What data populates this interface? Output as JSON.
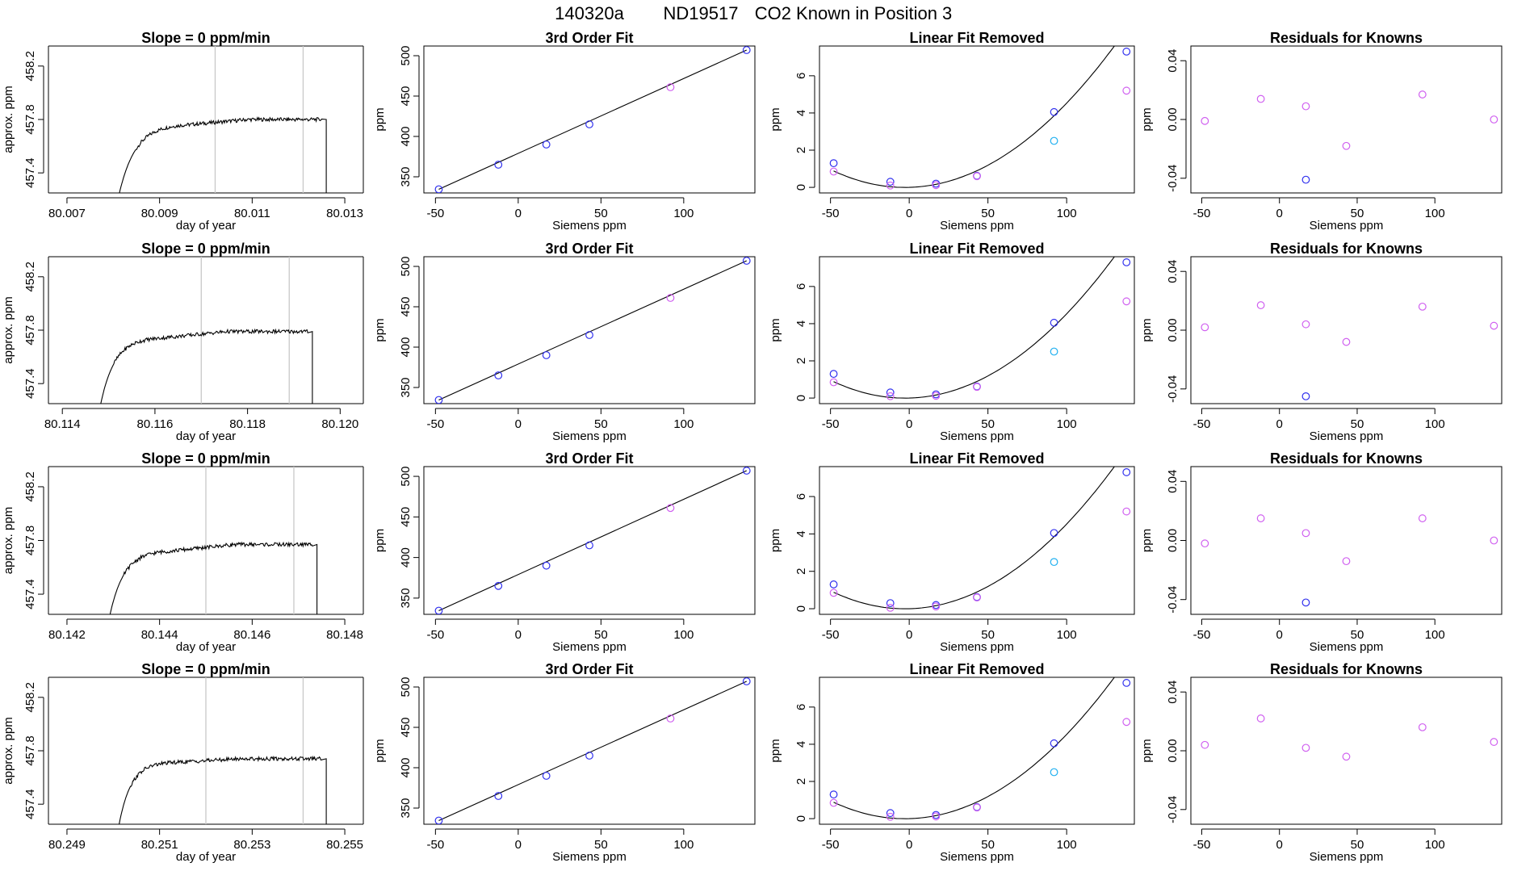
{
  "figure": {
    "title_left": "140320a",
    "title_mid": "ND19517",
    "title_right": "CO2 Known in Position  3"
  },
  "colors": {
    "blue": "#3030ee",
    "magenta": "#d060f0",
    "cyan": "#20b0f0",
    "gray": "#c8c8c8",
    "red": "#f09090"
  },
  "chart_data": [
    {
      "type": "line",
      "row": 1,
      "col": 1,
      "title": "Slope =  0  ppm/min",
      "xlabel": "day of year",
      "ylabel": "approx. ppm",
      "xlim": [
        80.0066,
        80.0134
      ],
      "ylim": [
        457.25,
        458.35
      ],
      "xticks": [
        80.007,
        80.009,
        80.011,
        80.013
      ],
      "xtick_labels": [
        "80.007",
        "80.009",
        "80.011",
        "80.013"
      ],
      "yticks": [
        457.4,
        457.8,
        458.2
      ],
      "ytick_labels": [
        "457.4",
        "457.8",
        "458.2"
      ],
      "vlines": [
        80.0102,
        80.0121
      ],
      "trace": {
        "start": 80.0081,
        "rise_end": 80.0096,
        "plateau_end": 80.0125,
        "end": 80.0126,
        "base": 457.2,
        "shoulder": 457.6,
        "plateau_start": 457.76,
        "plateau_level": 457.8
      }
    },
    {
      "type": "scatter",
      "row": 1,
      "col": 2,
      "title": "3rd Order Fit",
      "xlabel": "Siemens ppm",
      "ylabel": "ppm",
      "xlim": [
        -57,
        143
      ],
      "ylim": [
        330,
        512
      ],
      "xticks": [
        -50,
        0,
        50,
        100
      ],
      "yticks": [
        350,
        400,
        450,
        500
      ],
      "fit_line": [
        [
          -48,
          334.5
        ],
        [
          138,
          507
        ]
      ],
      "points": [
        {
          "x": -48,
          "y": 334.5,
          "c": "blue"
        },
        {
          "x": -12,
          "y": 365,
          "c": "blue"
        },
        {
          "x": 17,
          "y": 390,
          "c": "blue"
        },
        {
          "x": 43,
          "y": 415,
          "c": "blue"
        },
        {
          "x": 92,
          "y": 461,
          "c": "magenta"
        },
        {
          "x": 138,
          "y": 507,
          "c": "blue"
        }
      ]
    },
    {
      "type": "scatter",
      "row": 1,
      "col": 3,
      "title": "Linear Fit Removed",
      "xlabel": "Siemens ppm",
      "ylabel": "ppm",
      "xlim": [
        -57,
        143
      ],
      "ylim": [
        -0.3,
        7.6
      ],
      "xticks": [
        -50,
        0,
        50,
        100
      ],
      "yticks": [
        0,
        2,
        4,
        6
      ],
      "curve": {
        "a": 0.00043,
        "b": 0.0023
      },
      "points": [
        {
          "x": -48,
          "y": 1.3,
          "c": "blue"
        },
        {
          "x": -48,
          "y": 0.85,
          "c": "magenta"
        },
        {
          "x": -12,
          "y": 0.3,
          "c": "blue"
        },
        {
          "x": -12,
          "y": 0.1,
          "c": "magenta"
        },
        {
          "x": 17,
          "y": 0.2,
          "c": "blue"
        },
        {
          "x": 17,
          "y": 0.12,
          "c": "magenta"
        },
        {
          "x": 43,
          "y": 0.62,
          "c": "blue"
        },
        {
          "x": 43,
          "y": 0.6,
          "c": "magenta"
        },
        {
          "x": 92,
          "y": 4.05,
          "c": "blue"
        },
        {
          "x": 92,
          "y": 2.5,
          "c": "cyan"
        },
        {
          "x": 138,
          "y": 7.3,
          "c": "blue"
        },
        {
          "x": 138,
          "y": 5.2,
          "c": "magenta"
        }
      ]
    },
    {
      "type": "scatter",
      "row": 1,
      "col": 4,
      "title": "Residuals for Knowns",
      "xlabel": "Siemens ppm",
      "ylabel": "ppm",
      "xlim": [
        -57,
        143
      ],
      "ylim": [
        -0.05,
        0.05
      ],
      "xticks": [
        -50,
        0,
        50,
        100
      ],
      "yticks": [
        -0.04,
        0.0,
        0.04
      ],
      "ytick_labels": [
        "-0.04",
        "0.00",
        "0.04"
      ],
      "points": [
        {
          "x": -48,
          "y": -0.001,
          "c": "magenta"
        },
        {
          "x": -12,
          "y": 0.014,
          "c": "magenta"
        },
        {
          "x": 17,
          "y": -0.041,
          "c": "blue"
        },
        {
          "x": 17,
          "y": 0.009,
          "c": "magenta"
        },
        {
          "x": 43,
          "y": -0.018,
          "c": "magenta"
        },
        {
          "x": 92,
          "y": 0.017,
          "c": "magenta"
        },
        {
          "x": 138,
          "y": 0.0,
          "c": "magenta"
        }
      ]
    },
    {
      "type": "line",
      "row": 2,
      "col": 1,
      "title": "Slope =  0  ppm/min",
      "xlabel": "day of year",
      "ylabel": "approx. ppm",
      "xlim": [
        80.1137,
        80.1205
      ],
      "ylim": [
        457.25,
        458.35
      ],
      "xticks": [
        80.114,
        80.116,
        80.118,
        80.12
      ],
      "xtick_labels": [
        "80.114",
        "80.116",
        "80.118",
        "80.120"
      ],
      "yticks": [
        457.4,
        457.8,
        458.2
      ],
      "ytick_labels": [
        "457.4",
        "457.8",
        "458.2"
      ],
      "vlines": [
        80.117,
        80.1189
      ],
      "trace": {
        "start": 80.1148,
        "rise_end": 80.1161,
        "plateau_end": 80.1193,
        "end": 80.1194,
        "base": 457.2,
        "shoulder": 457.58,
        "plateau_start": 457.74,
        "plateau_level": 457.79
      }
    },
    {
      "type": "scatter",
      "row": 2,
      "col": 2,
      "title": "3rd Order Fit",
      "xlabel": "Siemens ppm",
      "ylabel": "ppm",
      "xlim": [
        -57,
        143
      ],
      "ylim": [
        330,
        512
      ],
      "xticks": [
        -50,
        0,
        50,
        100
      ],
      "yticks": [
        350,
        400,
        450,
        500
      ],
      "fit_line": [
        [
          -48,
          334.5
        ],
        [
          138,
          507
        ]
      ],
      "points": [
        {
          "x": -48,
          "y": 334.5,
          "c": "blue"
        },
        {
          "x": -12,
          "y": 365,
          "c": "blue"
        },
        {
          "x": 17,
          "y": 390,
          "c": "blue"
        },
        {
          "x": 43,
          "y": 415,
          "c": "blue"
        },
        {
          "x": 92,
          "y": 461,
          "c": "magenta"
        },
        {
          "x": 138,
          "y": 507,
          "c": "blue"
        }
      ]
    },
    {
      "type": "scatter",
      "row": 2,
      "col": 3,
      "title": "Linear Fit Removed",
      "xlabel": "Siemens ppm",
      "ylabel": "ppm",
      "xlim": [
        -57,
        143
      ],
      "ylim": [
        -0.3,
        7.6
      ],
      "xticks": [
        -50,
        0,
        50,
        100
      ],
      "yticks": [
        0,
        2,
        4,
        6
      ],
      "curve": {
        "a": 0.00043,
        "b": 0.0023
      },
      "points": [
        {
          "x": -48,
          "y": 1.3,
          "c": "blue"
        },
        {
          "x": -48,
          "y": 0.85,
          "c": "magenta"
        },
        {
          "x": -12,
          "y": 0.3,
          "c": "blue"
        },
        {
          "x": -12,
          "y": 0.1,
          "c": "magenta"
        },
        {
          "x": 17,
          "y": 0.2,
          "c": "blue"
        },
        {
          "x": 17,
          "y": 0.12,
          "c": "magenta"
        },
        {
          "x": 43,
          "y": 0.62,
          "c": "blue"
        },
        {
          "x": 43,
          "y": 0.6,
          "c": "magenta"
        },
        {
          "x": 92,
          "y": 4.05,
          "c": "blue"
        },
        {
          "x": 92,
          "y": 2.5,
          "c": "cyan"
        },
        {
          "x": 138,
          "y": 7.3,
          "c": "blue"
        },
        {
          "x": 138,
          "y": 5.2,
          "c": "magenta"
        }
      ]
    },
    {
      "type": "scatter",
      "row": 2,
      "col": 4,
      "title": "Residuals for Knowns",
      "xlabel": "Siemens ppm",
      "ylabel": "ppm",
      "xlim": [
        -57,
        143
      ],
      "ylim": [
        -0.05,
        0.05
      ],
      "xticks": [
        -50,
        0,
        50,
        100
      ],
      "yticks": [
        -0.04,
        0.0,
        0.04
      ],
      "ytick_labels": [
        "-0.04",
        "0.00",
        "0.04"
      ],
      "points": [
        {
          "x": -48,
          "y": 0.002,
          "c": "magenta"
        },
        {
          "x": -12,
          "y": 0.017,
          "c": "magenta"
        },
        {
          "x": 17,
          "y": -0.045,
          "c": "blue"
        },
        {
          "x": 17,
          "y": 0.004,
          "c": "magenta"
        },
        {
          "x": 43,
          "y": -0.008,
          "c": "magenta"
        },
        {
          "x": 92,
          "y": 0.016,
          "c": "magenta"
        },
        {
          "x": 138,
          "y": 0.003,
          "c": "magenta"
        }
      ]
    },
    {
      "type": "line",
      "row": 3,
      "col": 1,
      "title": "Slope =  0  ppm/min",
      "xlabel": "day of year",
      "ylabel": "approx. ppm",
      "xlim": [
        80.1416,
        80.1484
      ],
      "ylim": [
        457.25,
        458.35
      ],
      "xticks": [
        80.142,
        80.144,
        80.146,
        80.148
      ],
      "xtick_labels": [
        "80.142",
        "80.144",
        "80.146",
        "80.148"
      ],
      "yticks": [
        457.4,
        457.8,
        458.2
      ],
      "ytick_labels": [
        "457.4",
        "457.8",
        "458.2"
      ],
      "vlines": [
        80.145,
        80.1469
      ],
      "trace": {
        "start": 80.1429,
        "rise_end": 80.1442,
        "plateau_end": 80.1473,
        "end": 80.1474,
        "base": 457.2,
        "shoulder": 457.56,
        "plateau_start": 457.72,
        "plateau_level": 457.77
      }
    },
    {
      "type": "scatter",
      "row": 3,
      "col": 2,
      "title": "3rd Order Fit",
      "xlabel": "Siemens ppm",
      "ylabel": "ppm",
      "xlim": [
        -57,
        143
      ],
      "ylim": [
        330,
        512
      ],
      "xticks": [
        -50,
        0,
        50,
        100
      ],
      "yticks": [
        350,
        400,
        450,
        500
      ],
      "fit_line": [
        [
          -48,
          334.5
        ],
        [
          138,
          507
        ]
      ],
      "points": [
        {
          "x": -48,
          "y": 334.5,
          "c": "blue"
        },
        {
          "x": -12,
          "y": 365,
          "c": "blue"
        },
        {
          "x": 17,
          "y": 390,
          "c": "blue"
        },
        {
          "x": 43,
          "y": 415,
          "c": "blue"
        },
        {
          "x": 92,
          "y": 461,
          "c": "magenta"
        },
        {
          "x": 138,
          "y": 507,
          "c": "blue"
        }
      ]
    },
    {
      "type": "scatter",
      "row": 3,
      "col": 3,
      "title": "Linear Fit Removed",
      "xlabel": "Siemens ppm",
      "ylabel": "ppm",
      "xlim": [
        -57,
        143
      ],
      "ylim": [
        -0.3,
        7.6
      ],
      "xticks": [
        -50,
        0,
        50,
        100
      ],
      "yticks": [
        0,
        2,
        4,
        6
      ],
      "curve": {
        "a": 0.00043,
        "b": 0.0023
      },
      "points": [
        {
          "x": -48,
          "y": 1.3,
          "c": "blue"
        },
        {
          "x": -48,
          "y": 0.85,
          "c": "magenta"
        },
        {
          "x": -12,
          "y": 0.3,
          "c": "blue"
        },
        {
          "x": -12,
          "y": 0.05,
          "c": "magenta"
        },
        {
          "x": 17,
          "y": 0.2,
          "c": "blue"
        },
        {
          "x": 17,
          "y": 0.12,
          "c": "magenta"
        },
        {
          "x": 43,
          "y": 0.62,
          "c": "blue"
        },
        {
          "x": 43,
          "y": 0.6,
          "c": "magenta"
        },
        {
          "x": 92,
          "y": 4.05,
          "c": "blue"
        },
        {
          "x": 92,
          "y": 2.5,
          "c": "cyan"
        },
        {
          "x": 138,
          "y": 7.3,
          "c": "blue"
        },
        {
          "x": 138,
          "y": 5.2,
          "c": "magenta"
        }
      ]
    },
    {
      "type": "scatter",
      "row": 3,
      "col": 4,
      "title": "Residuals for Knowns",
      "xlabel": "Siemens ppm",
      "ylabel": "ppm",
      "xlim": [
        -57,
        143
      ],
      "ylim": [
        -0.05,
        0.05
      ],
      "xticks": [
        -50,
        0,
        50,
        100
      ],
      "yticks": [
        -0.04,
        0.0,
        0.04
      ],
      "ytick_labels": [
        "-0.04",
        "0.00",
        "0.04"
      ],
      "points": [
        {
          "x": -48,
          "y": -0.002,
          "c": "magenta"
        },
        {
          "x": -12,
          "y": 0.015,
          "c": "magenta"
        },
        {
          "x": 17,
          "y": -0.042,
          "c": "blue"
        },
        {
          "x": 17,
          "y": 0.005,
          "c": "magenta"
        },
        {
          "x": 43,
          "y": -0.014,
          "c": "magenta"
        },
        {
          "x": 92,
          "y": 0.015,
          "c": "magenta"
        },
        {
          "x": 138,
          "y": 0.0,
          "c": "magenta"
        }
      ]
    },
    {
      "type": "line",
      "row": 4,
      "col": 1,
      "title": "Slope =  0  ppm/min",
      "xlabel": "day of year",
      "ylabel": "approx. ppm",
      "xlim": [
        80.2486,
        80.2554
      ],
      "ylim": [
        457.25,
        458.35
      ],
      "xticks": [
        80.249,
        80.251,
        80.253,
        80.255
      ],
      "xtick_labels": [
        "80.249",
        "80.251",
        "80.253",
        "80.255"
      ],
      "yticks": [
        457.4,
        457.8,
        458.2
      ],
      "ytick_labels": [
        "457.4",
        "457.8",
        "458.2"
      ],
      "vlines": [
        80.252,
        80.2541
      ],
      "trace": {
        "start": 80.2501,
        "rise_end": 80.2512,
        "plateau_end": 80.2545,
        "end": 80.2546,
        "base": 457.2,
        "shoulder": 457.56,
        "plateau_start": 457.71,
        "plateau_level": 457.74
      }
    },
    {
      "type": "scatter",
      "row": 4,
      "col": 2,
      "title": "3rd Order Fit",
      "xlabel": "Siemens ppm",
      "ylabel": "ppm",
      "xlim": [
        -57,
        143
      ],
      "ylim": [
        330,
        512
      ],
      "xticks": [
        -50,
        0,
        50,
        100
      ],
      "yticks": [
        350,
        400,
        450,
        500
      ],
      "fit_line": [
        [
          -48,
          334.5
        ],
        [
          138,
          507
        ]
      ],
      "points": [
        {
          "x": -48,
          "y": 334.5,
          "c": "blue"
        },
        {
          "x": -12,
          "y": 365,
          "c": "blue"
        },
        {
          "x": 17,
          "y": 390,
          "c": "blue"
        },
        {
          "x": 43,
          "y": 415,
          "c": "blue"
        },
        {
          "x": 92,
          "y": 461,
          "c": "magenta"
        },
        {
          "x": 138,
          "y": 507,
          "c": "blue"
        }
      ]
    },
    {
      "type": "scatter",
      "row": 4,
      "col": 3,
      "title": "Linear Fit Removed",
      "xlabel": "Siemens ppm",
      "ylabel": "ppm",
      "xlim": [
        -57,
        143
      ],
      "ylim": [
        -0.3,
        7.6
      ],
      "xticks": [
        -50,
        0,
        50,
        100
      ],
      "yticks": [
        0,
        2,
        4,
        6
      ],
      "curve": {
        "a": 0.00043,
        "b": 0.0023
      },
      "points": [
        {
          "x": -48,
          "y": 1.3,
          "c": "blue"
        },
        {
          "x": -48,
          "y": 0.85,
          "c": "magenta"
        },
        {
          "x": -12,
          "y": 0.3,
          "c": "blue"
        },
        {
          "x": -12,
          "y": 0.1,
          "c": "magenta"
        },
        {
          "x": 17,
          "y": 0.2,
          "c": "blue"
        },
        {
          "x": 17,
          "y": 0.12,
          "c": "magenta"
        },
        {
          "x": 43,
          "y": 0.62,
          "c": "blue"
        },
        {
          "x": 43,
          "y": 0.6,
          "c": "magenta"
        },
        {
          "x": 92,
          "y": 4.05,
          "c": "blue"
        },
        {
          "x": 92,
          "y": 2.5,
          "c": "cyan"
        },
        {
          "x": 138,
          "y": 7.3,
          "c": "blue"
        },
        {
          "x": 138,
          "y": 5.2,
          "c": "magenta"
        }
      ]
    },
    {
      "type": "scatter",
      "row": 4,
      "col": 4,
      "title": "Residuals for Knowns",
      "xlabel": "Siemens ppm",
      "ylabel": "ppm",
      "xlim": [
        -57,
        143
      ],
      "ylim": [
        -0.05,
        0.05
      ],
      "xticks": [
        -50,
        0,
        50,
        100
      ],
      "yticks": [
        -0.04,
        0.0,
        0.04
      ],
      "ytick_labels": [
        "-0.04",
        "0.00",
        "0.04"
      ],
      "points": [
        {
          "x": -48,
          "y": 0.004,
          "c": "magenta"
        },
        {
          "x": -12,
          "y": 0.022,
          "c": "magenta"
        },
        {
          "x": 17,
          "y": 0.002,
          "c": "magenta"
        },
        {
          "x": 43,
          "y": -0.004,
          "c": "magenta"
        },
        {
          "x": 92,
          "y": 0.016,
          "c": "magenta"
        },
        {
          "x": 138,
          "y": 0.006,
          "c": "magenta"
        }
      ]
    }
  ]
}
